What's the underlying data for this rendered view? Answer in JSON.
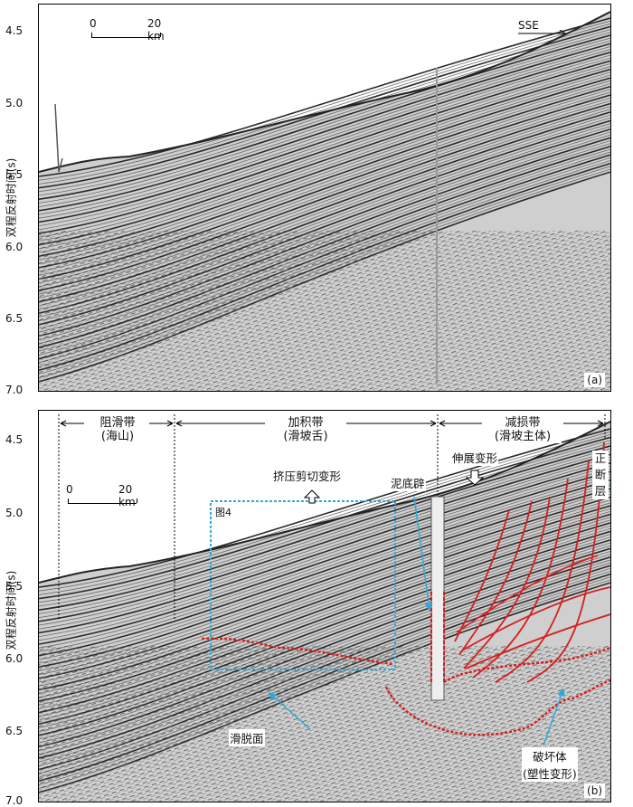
{
  "y_axis": {
    "label": "双程反射时间(s)",
    "ticks": [
      "4.5",
      "5.0",
      "5.5",
      "6.0",
      "6.5",
      "7.0"
    ]
  },
  "panel_a": {
    "label": "(a)",
    "scale_bar": {
      "start": "0",
      "end": "20 km"
    },
    "direction": "SSE"
  },
  "panel_b": {
    "label": "(b)",
    "scale_bar": {
      "start": "0",
      "end": "20 km"
    },
    "zones": [
      {
        "name": "阻滑带",
        "sub": "(海山)"
      },
      {
        "name": "加积带",
        "sub": "(滑坡舌)"
      },
      {
        "name": "减损带",
        "sub": "(滑坡主体)"
      }
    ],
    "annotations": {
      "compression": "挤压剪切变形",
      "figure_ref": "图4",
      "mud_diapir": "泥底辟",
      "extension": "伸展变形",
      "normal_fault": [
        "正",
        "断",
        "层"
      ],
      "detachment": "滑脱面",
      "destroyed_body": "破坏体",
      "plastic": "(塑性变形)"
    }
  },
  "colors": {
    "fault": "#d42020",
    "box": "#2fa8d8",
    "arrow": "#2fa8d8",
    "seismic": "#3a3a3a"
  }
}
